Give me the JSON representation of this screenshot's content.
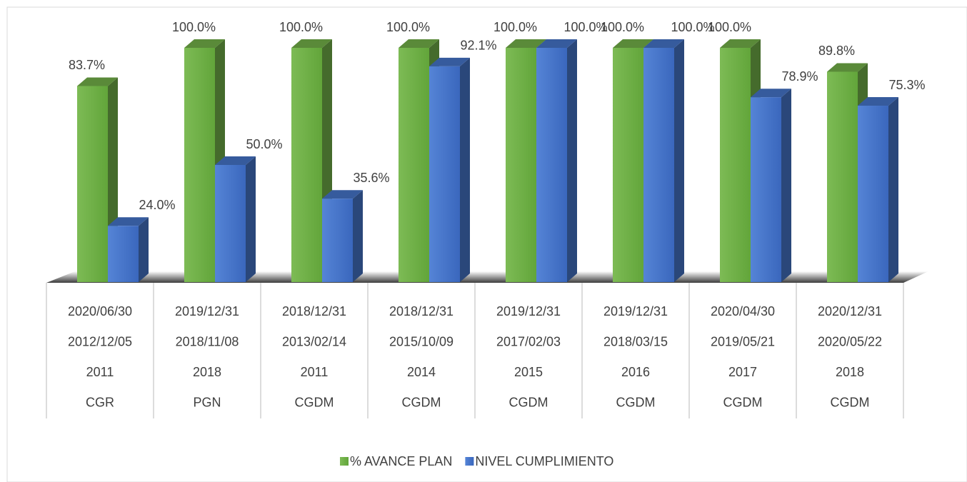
{
  "chart_data": {
    "type": "bar3d",
    "categories": [
      [
        "2020/06/30",
        "2012/12/05",
        "2011",
        "CGR"
      ],
      [
        "2019/12/31",
        "2018/11/08",
        "2018",
        "PGN"
      ],
      [
        "2018/12/31",
        "2013/02/14",
        "2011",
        "CGDM"
      ],
      [
        "2018/12/31",
        "2015/10/09",
        "2014",
        "CGDM"
      ],
      [
        "2019/12/31",
        "2017/02/03",
        "2015",
        "CGDM"
      ],
      [
        "2019/12/31",
        "2018/03/15",
        "2016",
        "CGDM"
      ],
      [
        "2020/04/30",
        "2019/05/21",
        "2017",
        "CGDM"
      ],
      [
        "2020/12/31",
        "2020/05/22",
        "2018",
        "CGDM"
      ]
    ],
    "series": [
      {
        "name": "% AVANCE PLAN",
        "color": "#70ad47",
        "values": [
          83.7,
          100.0,
          100.0,
          100.0,
          100.0,
          100.0,
          100.0,
          89.8
        ],
        "value_labels": [
          "83.7%",
          "100.0%",
          "100.0%",
          "100.0%",
          "100.0%",
          "100.0%",
          "100.0%",
          "89.8%"
        ]
      },
      {
        "name": "NIVEL CUMPLIMIENTO",
        "color": "#4472c4",
        "values": [
          24.0,
          50.0,
          35.6,
          92.1,
          100.0,
          100.0,
          78.9,
          75.3
        ],
        "value_labels": [
          "24.0%",
          "50.0%",
          "35.6%",
          "92.1%",
          "100.0%",
          "100.0%",
          "78.9%",
          "75.3%"
        ]
      }
    ],
    "ylim": [
      0,
      100
    ],
    "legend": "bottom"
  }
}
